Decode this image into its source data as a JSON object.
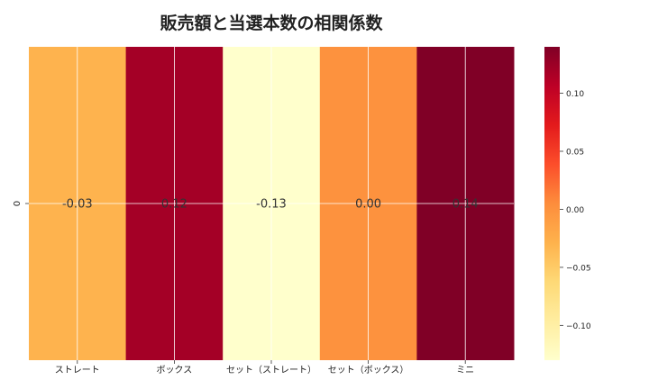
{
  "chart_data": {
    "type": "heatmap",
    "title": "販売額と当選本数の相関係数",
    "xlabel": "",
    "ylabel": "",
    "x_categories": [
      "ストレート",
      "ボックス",
      "セット（ストレート）",
      "セット（ボックス）",
      "ミニ"
    ],
    "y_categories": [
      "0"
    ],
    "values": [
      [
        -0.03,
        0.12,
        -0.13,
        0.0,
        0.14
      ]
    ],
    "annotations": [
      [
        "-0.03",
        "0.12",
        "-0.13",
        "0.00",
        "0.14"
      ]
    ],
    "colormap": "YlOrRd",
    "vmin": -0.13,
    "vmax": 0.14,
    "colorbar": {
      "position": "right",
      "ticks": [
        0.1,
        0.05,
        0.0,
        -0.05,
        -0.1
      ],
      "tick_labels": [
        "0.10",
        "0.05",
        "0.00",
        "−0.05",
        "−0.10"
      ]
    },
    "grid": true
  }
}
